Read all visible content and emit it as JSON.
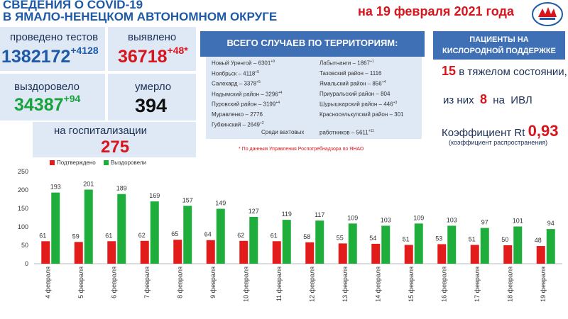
{
  "header": {
    "line1": "СВЕДЕНИЯ О COVID-19",
    "line2": "В ЯМАЛО-НЕНЕЦКОМ АВТОНОМНОМ ОКРУГЕ",
    "date": "на 19 февраля 2021 года"
  },
  "stats": {
    "tests_label": "проведено тестов",
    "tests_value": "1382172",
    "tests_delta": "+4128",
    "detected_label": "выявлено",
    "detected_value": "36718",
    "detected_delta": "+48*",
    "recovered_label": "выздоровело",
    "recovered_value": "34387",
    "recovered_delta": "+94",
    "died_label": "умерло",
    "died_value": "394",
    "hosp_label": "на госпитализации",
    "hosp_value": "275"
  },
  "territory": {
    "title": "ВСЕГО СЛУЧАЕВ ПО ТЕРРИТОРИЯМ:",
    "left": [
      {
        "name": "Новый Уренгой – 6301",
        "delta": "+9"
      },
      {
        "name": "Ноябрьск – 4118",
        "delta": "+5"
      },
      {
        "name": "Салехард – 3378",
        "delta": "+5"
      },
      {
        "name": "Надымский район – 3296",
        "delta": "+4"
      },
      {
        "name": "Пуровский район – 3199",
        "delta": "+4"
      },
      {
        "name": "Муравленко – 2776",
        "delta": ""
      },
      {
        "name": "Губкинский – 2649",
        "delta": "+2"
      }
    ],
    "right": [
      {
        "name": "Лабытнанги – 1867",
        "delta": "+1"
      },
      {
        "name": "Тазовский район – 1116",
        "delta": ""
      },
      {
        "name": "Ямальский район – 856",
        "delta": "+4"
      },
      {
        "name": "Приуральский район – 804",
        "delta": ""
      },
      {
        "name": "Шурышкарский район – 446",
        "delta": "+3"
      },
      {
        "name": "Красноселькупский район – 301",
        "delta": ""
      }
    ],
    "shift_label": "Среди вахтовых",
    "shift_value": "работников – 5611",
    "shift_delta": "+11",
    "note": "* По данным Управления Роспотребнадзора по ЯНАО"
  },
  "oxygen": {
    "title_line1": "ПАЦИЕНТЫ НА",
    "title_line2": "КИСЛОРОДНОЙ ПОДДЕРЖКЕ",
    "severe_value": "15",
    "severe_label": "в тяжелом состоянии,",
    "of_them": "из них",
    "ivl_value": "8",
    "ivl_on": "на",
    "ivl_label": "ИВЛ",
    "rt_label": "Коэффициент Rt",
    "rt_value": "0,93",
    "rt_note": "(коэффициент распространения)"
  },
  "colors": {
    "confirmed": "#e21b1b",
    "recovered": "#1fae3b",
    "accent_blue": "#1e5aa6",
    "panel_blue": "#3f6fb5"
  },
  "chart_data": {
    "type": "bar",
    "categories": [
      "4 февраля",
      "5 февраля",
      "6 февраля",
      "7 февраля",
      "8 февраля",
      "9 февраля",
      "10 февраля",
      "11 февраля",
      "12 февраля",
      "13 февраля",
      "14 февраля",
      "15 февраля",
      "16 февраля",
      "17 февраля",
      "18 февраля",
      "19 февраля"
    ],
    "series": [
      {
        "name": "Подтверждено",
        "values": [
          61,
          59,
          61,
          62,
          65,
          64,
          62,
          61,
          58,
          55,
          54,
          51,
          53,
          51,
          50,
          48
        ]
      },
      {
        "name": "Выздоровели",
        "values": [
          193,
          201,
          189,
          169,
          157,
          149,
          127,
          119,
          117,
          109,
          103,
          109,
          103,
          97,
          101,
          94
        ]
      }
    ],
    "ylim": [
      0,
      250
    ],
    "yticks": [
      0,
      50,
      100,
      150,
      200,
      250
    ],
    "legend": "top-left",
    "grid": false
  }
}
